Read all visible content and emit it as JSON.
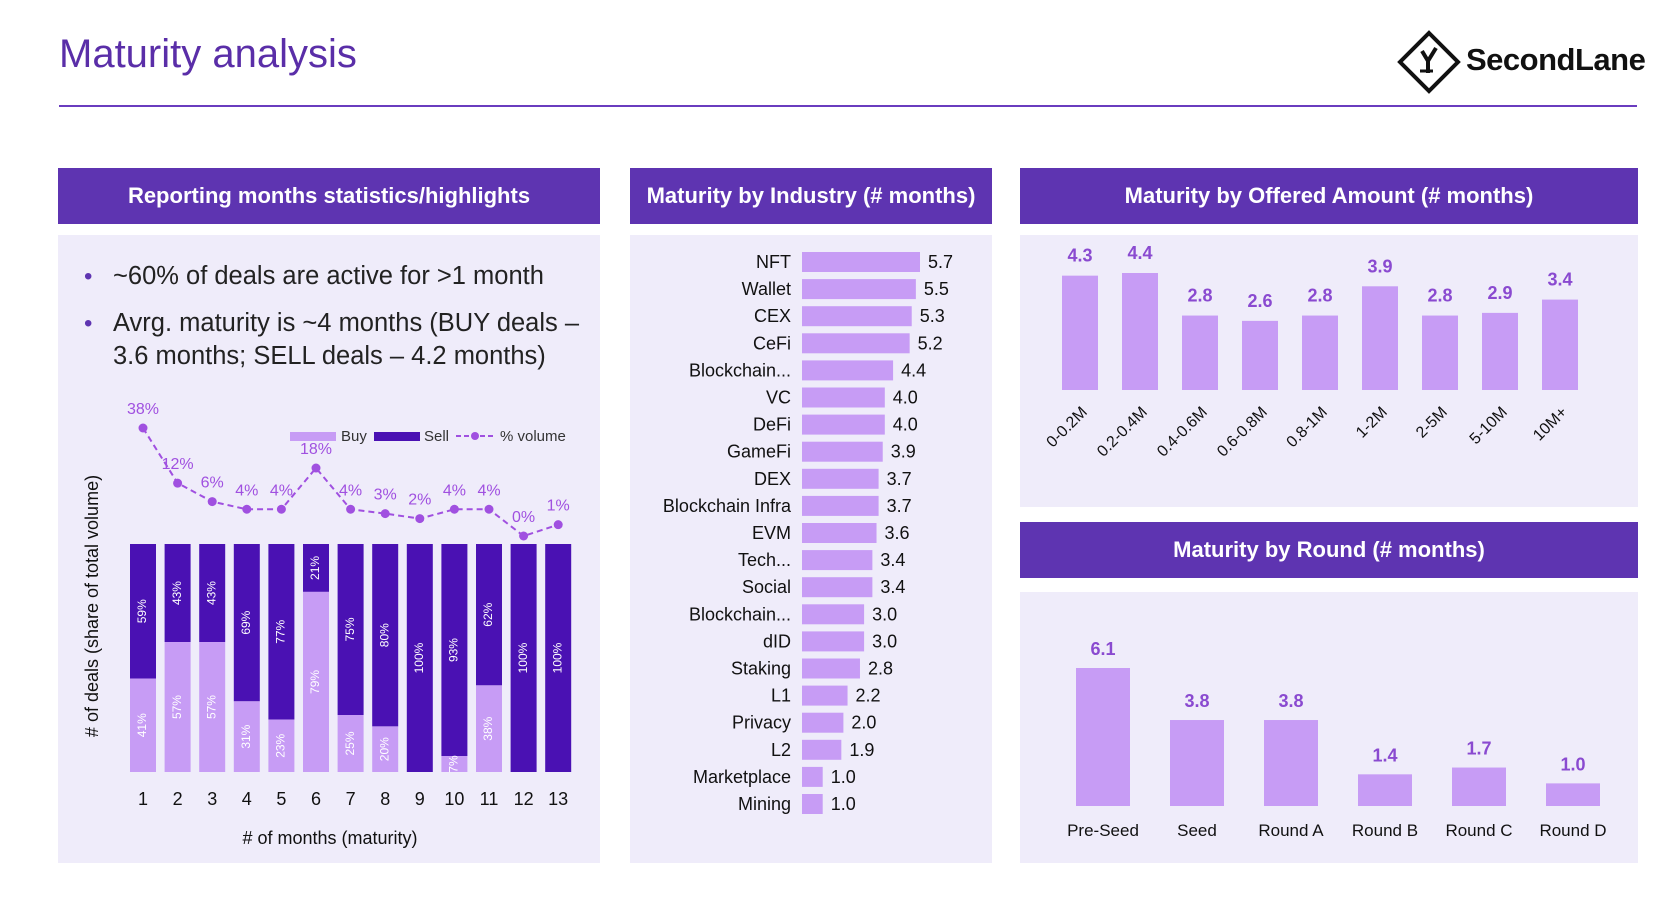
{
  "page": {
    "title": "Maturity analysis",
    "brand": "SecondLane"
  },
  "colors": {
    "accent": "#5e34b1",
    "light_bar": "#c79cf5",
    "dark_bar": "#4a11b3",
    "panel_bg": "#efecfa"
  },
  "panels": {
    "highlights": {
      "title": "Reporting months statistics/highlights",
      "bullets": [
        "~60% of deals are active for >1 month",
        "Avrg. maturity is ~4 months (BUY deals – 3.6 months; SELL deals – 4.2 months)"
      ]
    },
    "industry": {
      "title": "Maturity by Industry (# months)"
    },
    "amount": {
      "title": "Maturity by Offered Amount (# months)"
    },
    "round": {
      "title": "Maturity by Round (# months)"
    }
  },
  "chart_data": [
    {
      "type": "bar",
      "stacked": true,
      "categories": [
        "1",
        "2",
        "3",
        "4",
        "5",
        "6",
        "7",
        "8",
        "9",
        "10",
        "11",
        "12",
        "13"
      ],
      "series": [
        {
          "name": "Buy",
          "values": [
            41,
            57,
            57,
            31,
            23,
            79,
            25,
            20,
            0,
            7,
            38,
            0,
            0
          ],
          "labels": [
            "41%",
            "57%",
            "57%",
            "31%",
            "23%",
            "79%",
            "25%",
            "20%",
            "",
            "7%",
            "38%",
            "",
            ""
          ]
        },
        {
          "name": "Sell",
          "values": [
            59,
            43,
            43,
            69,
            77,
            21,
            75,
            80,
            100,
            93,
            62,
            100,
            100
          ],
          "labels": [
            "59%",
            "43%",
            "43%",
            "69%",
            "77%",
            "21%",
            "75%",
            "80%",
            "100%",
            "93%",
            "62%",
            "100%",
            "100%"
          ]
        },
        {
          "name": "% volume",
          "type": "line",
          "values": [
            38,
            12,
            6,
            4,
            4,
            18,
            4,
            3,
            2,
            4,
            4,
            0,
            1
          ],
          "labels": [
            "38%",
            "12%",
            "6%",
            "4%",
            "4%",
            "18%",
            "4%",
            "3%",
            "2%",
            "4%",
            "4%",
            "0%",
            "1%"
          ]
        }
      ],
      "xlabel": "# of months (maturity)",
      "ylabel": "# of deals (share of total volume)",
      "legend": "top-right"
    },
    {
      "type": "bar",
      "orientation": "horizontal",
      "title": "Maturity by Industry (# months)",
      "categories": [
        "NFT",
        "Wallet",
        "CEX",
        "CeFi",
        "Blockchain...",
        "VC",
        "DeFi",
        "GameFi",
        "DEX",
        "Blockchain Infra",
        "EVM",
        "Tech...",
        "Social",
        "Blockchain...",
        "dID",
        "Staking",
        "L1",
        "Privacy",
        "L2",
        "Marketplace",
        "Mining"
      ],
      "values": [
        5.7,
        5.5,
        5.3,
        5.2,
        4.4,
        4.0,
        4.0,
        3.9,
        3.7,
        3.7,
        3.6,
        3.4,
        3.4,
        3.0,
        3.0,
        2.8,
        2.2,
        2.0,
        1.9,
        1.0,
        1.0
      ],
      "labels": [
        "5.7",
        "5.5",
        "5.3",
        "5.2",
        "4.4",
        "4.0",
        "4.0",
        "3.9",
        "3.7",
        "3.7",
        "3.6",
        "3.4",
        "3.4",
        "3.0",
        "3.0",
        "2.8",
        "2.2",
        "2.0",
        "1.9",
        "1.0",
        "1.0"
      ]
    },
    {
      "type": "bar",
      "title": "Maturity by Offered Amount (# months)",
      "categories": [
        "0-0.2M",
        "0.2-0.4M",
        "0.4-0.6M",
        "0.6-0.8M",
        "0.8-1M",
        "1-2M",
        "2-5M",
        "5-10M",
        "10M+"
      ],
      "values": [
        4.3,
        4.4,
        2.8,
        2.6,
        2.8,
        3.9,
        2.8,
        2.9,
        3.4
      ],
      "labels": [
        "4.3",
        "4.4",
        "2.8",
        "2.6",
        "2.8",
        "3.9",
        "2.8",
        "2.9",
        "3.4"
      ]
    },
    {
      "type": "bar",
      "title": "Maturity by Round (# months)",
      "categories": [
        "Pre-Seed",
        "Seed",
        "Round A",
        "Round B",
        "Round C",
        "Round D"
      ],
      "values": [
        6.1,
        3.8,
        3.8,
        1.4,
        1.7,
        1.0
      ],
      "labels": [
        "6.1",
        "3.8",
        "3.8",
        "1.4",
        "1.7",
        "1.0"
      ]
    }
  ]
}
